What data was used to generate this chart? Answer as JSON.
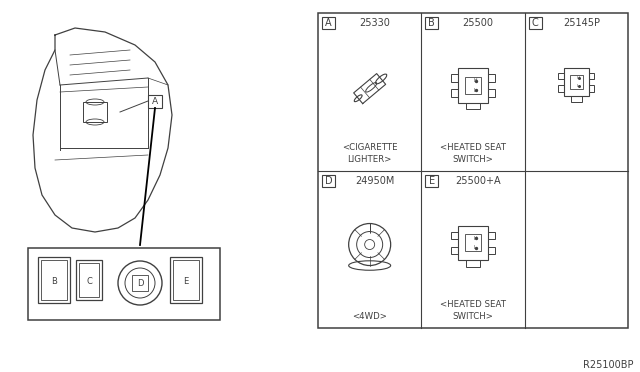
{
  "bg_color": "#ffffff",
  "line_color": "#404040",
  "ref_code": "R25100BP",
  "cells": [
    {
      "label": "A",
      "part_no": "25330",
      "desc": "<CIGARETTE\nLIGHTER>",
      "col": 0,
      "row": 0
    },
    {
      "label": "B",
      "part_no": "25500",
      "desc": "<HEATED SEAT\nSWITCH>",
      "col": 1,
      "row": 0
    },
    {
      "label": "C",
      "part_no": "25145P",
      "desc": "",
      "col": 2,
      "row": 0
    },
    {
      "label": "D",
      "part_no": "24950M",
      "desc": "<4WD>",
      "col": 0,
      "row": 1
    },
    {
      "label": "E",
      "part_no": "25500+A",
      "desc": "<HEATED SEAT\nSWITCH>",
      "col": 1,
      "row": 1
    }
  ],
  "gx0": 318,
  "gy0": 13,
  "gx1": 628,
  "gy1": 328,
  "n_cols": 3,
  "n_rows": 2
}
